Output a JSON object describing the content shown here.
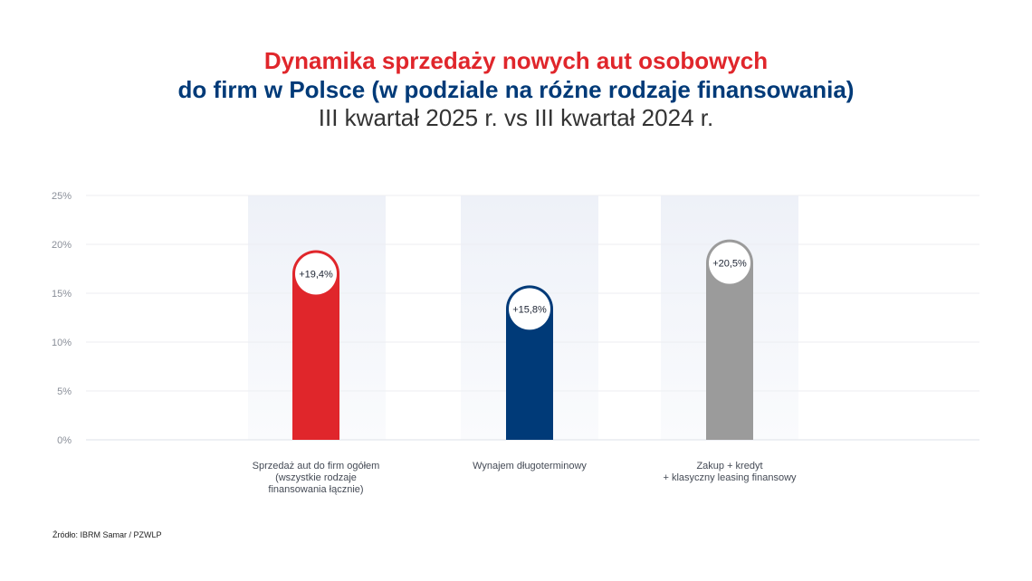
{
  "title": {
    "line1": "Dynamika sprzedaży nowych aut osobowych",
    "line2": "do firm w Polsce (w podziale na różne rodzaje finansowania)",
    "line3": "III kwartał 2025 r. vs III kwartał 2024 r."
  },
  "source": "Źródło:  IBRM Samar / PZWLP",
  "chart_data": {
    "type": "bar",
    "title": "Dynamika sprzedaży nowych aut osobowych do firm w Polsce (w podziale na różne rodzaje finansowania) III kwartał 2025 r. vs III kwartał 2024 r.",
    "categories": [
      [
        "Sprzedaż aut do firm ogółem",
        "(wszystkie rodzaje",
        "finansowania łącznie)"
      ],
      [
        "Wynajem długoterminowy"
      ],
      [
        "Zakup + kredyt",
        "+ klasyczny leasing finansowy"
      ]
    ],
    "values": [
      19.4,
      15.8,
      20.5
    ],
    "data_labels": [
      "+19,4%",
      "+15,8%",
      "+20,5%"
    ],
    "colors": [
      "#e0262b",
      "#003a78",
      "#9b9b9b"
    ],
    "ylim": [
      0,
      25
    ],
    "yticks": [
      "0%",
      "5%",
      "10%",
      "15%",
      "20%",
      "25%"
    ],
    "grid": true,
    "xlabel": "",
    "ylabel": ""
  }
}
